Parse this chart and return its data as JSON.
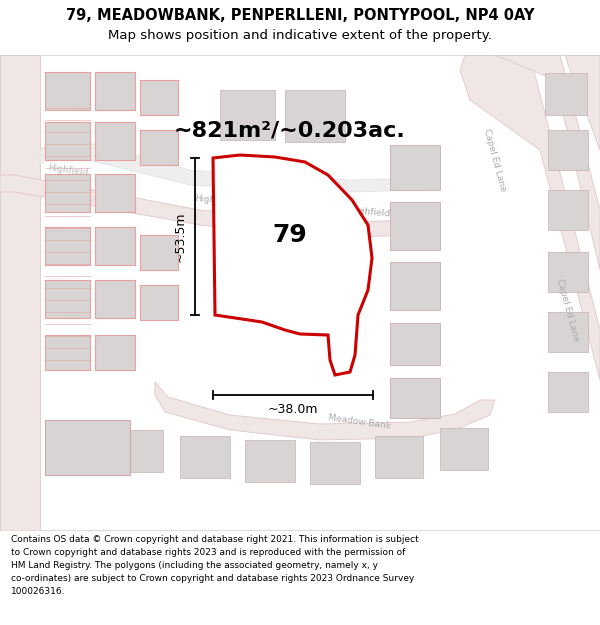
{
  "title_line1": "79, MEADOWBANK, PENPERLLENI, PONTYPOOL, NP4 0AY",
  "title_line2": "Map shows position and indicative extent of the property.",
  "footer_lines": [
    "Contains OS data © Crown copyright and database right 2021. This information is subject",
    "to Crown copyright and database rights 2023 and is reproduced with the permission of",
    "HM Land Registry. The polygons (including the associated geometry, namely x, y",
    "co-ordinates) are subject to Crown copyright and database rights 2023 Ordnance Survey",
    "100026316."
  ],
  "area_label": "~821m²/~0.203ac.",
  "number_label": "79",
  "dim_width": "~38.0m",
  "dim_height": "~53.5m",
  "map_bg": "#f7f3f3",
  "plot_color_fill": "#ffffff",
  "plot_color_edge": "#cc0000",
  "road_light": "#f0e6e6",
  "road_edge": "#e0c8c8",
  "block_fill": "#e8e4e4",
  "block_edge": "#d4b8b8",
  "bldg_fill": "#d8d4d4",
  "bldg_edge": "#c8b0b0",
  "label_color": "#aaaaaa",
  "dim_color": "#000000",
  "title_fontsize": 10.5,
  "subtitle_fontsize": 9.5,
  "footer_fontsize": 6.5
}
